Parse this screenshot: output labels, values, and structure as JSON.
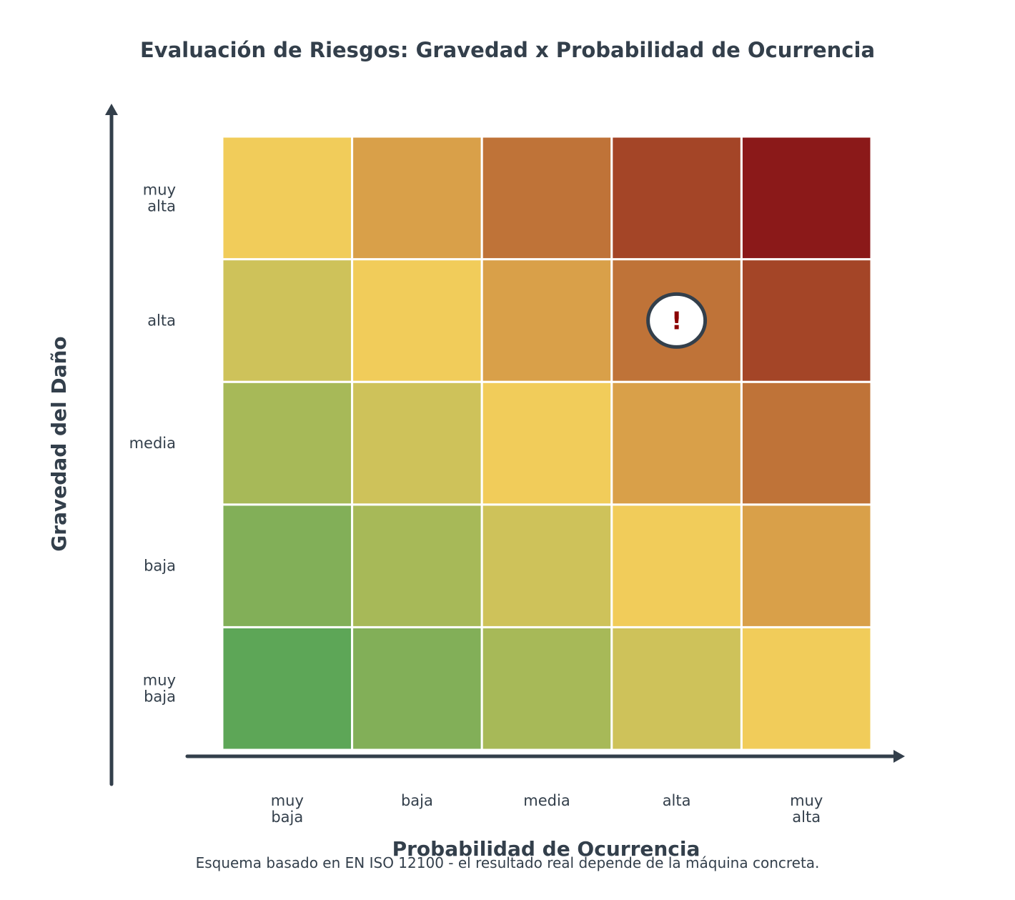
{
  "chart_data": {
    "type": "heatmap",
    "title": "Evaluación de Riesgos: Gravedad x Probabilidad de Ocurrencia",
    "xlabel": "Probabilidad de Ocurrencia",
    "ylabel": "Gravedad del Daño",
    "x_categories": [
      "muy baja",
      "baja",
      "media",
      "alta",
      "muy alta"
    ],
    "y_categories": [
      "muy baja",
      "baja",
      "media",
      "alta",
      "muy alta"
    ],
    "risk_levels_bottom_to_top": [
      [
        1,
        2,
        3,
        4,
        5
      ],
      [
        2,
        3,
        4,
        5,
        6
      ],
      [
        3,
        4,
        5,
        6,
        7
      ],
      [
        4,
        5,
        6,
        7,
        8
      ],
      [
        5,
        6,
        7,
        8,
        9
      ]
    ],
    "level_colors": {
      "1": "#5da657",
      "2": "#82af58",
      "3": "#a7b958",
      "4": "#cec25a",
      "5": "#f1cc5a",
      "6": "#d9a049",
      "7": "#bf7338",
      "8": "#a44527",
      "9": "#8b1919"
    },
    "marker": {
      "x": "alta",
      "y": "alta",
      "symbol": "!",
      "fill": "#ffffff",
      "stroke": "#333f4b",
      "text_color": "#8b0000"
    },
    "footnote": "Esquema basado en EN ISO 12100 - el resultado real depende de la máquina concreta.",
    "axis_color": "#333f4b"
  }
}
